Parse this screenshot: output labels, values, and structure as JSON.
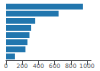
{
  "chart_data": {
    "type": "bar",
    "orientation": "horizontal",
    "categories": [
      null,
      null,
      null,
      null,
      null,
      null,
      null,
      null
    ],
    "values": [
      950,
      650,
      360,
      310,
      290,
      265,
      240,
      110
    ],
    "color": "#2176ae",
    "xlim": [
      0,
      1050
    ],
    "xticks": [
      0,
      200,
      400,
      600,
      800,
      1000
    ],
    "grid": false,
    "tick_labels": "x"
  }
}
